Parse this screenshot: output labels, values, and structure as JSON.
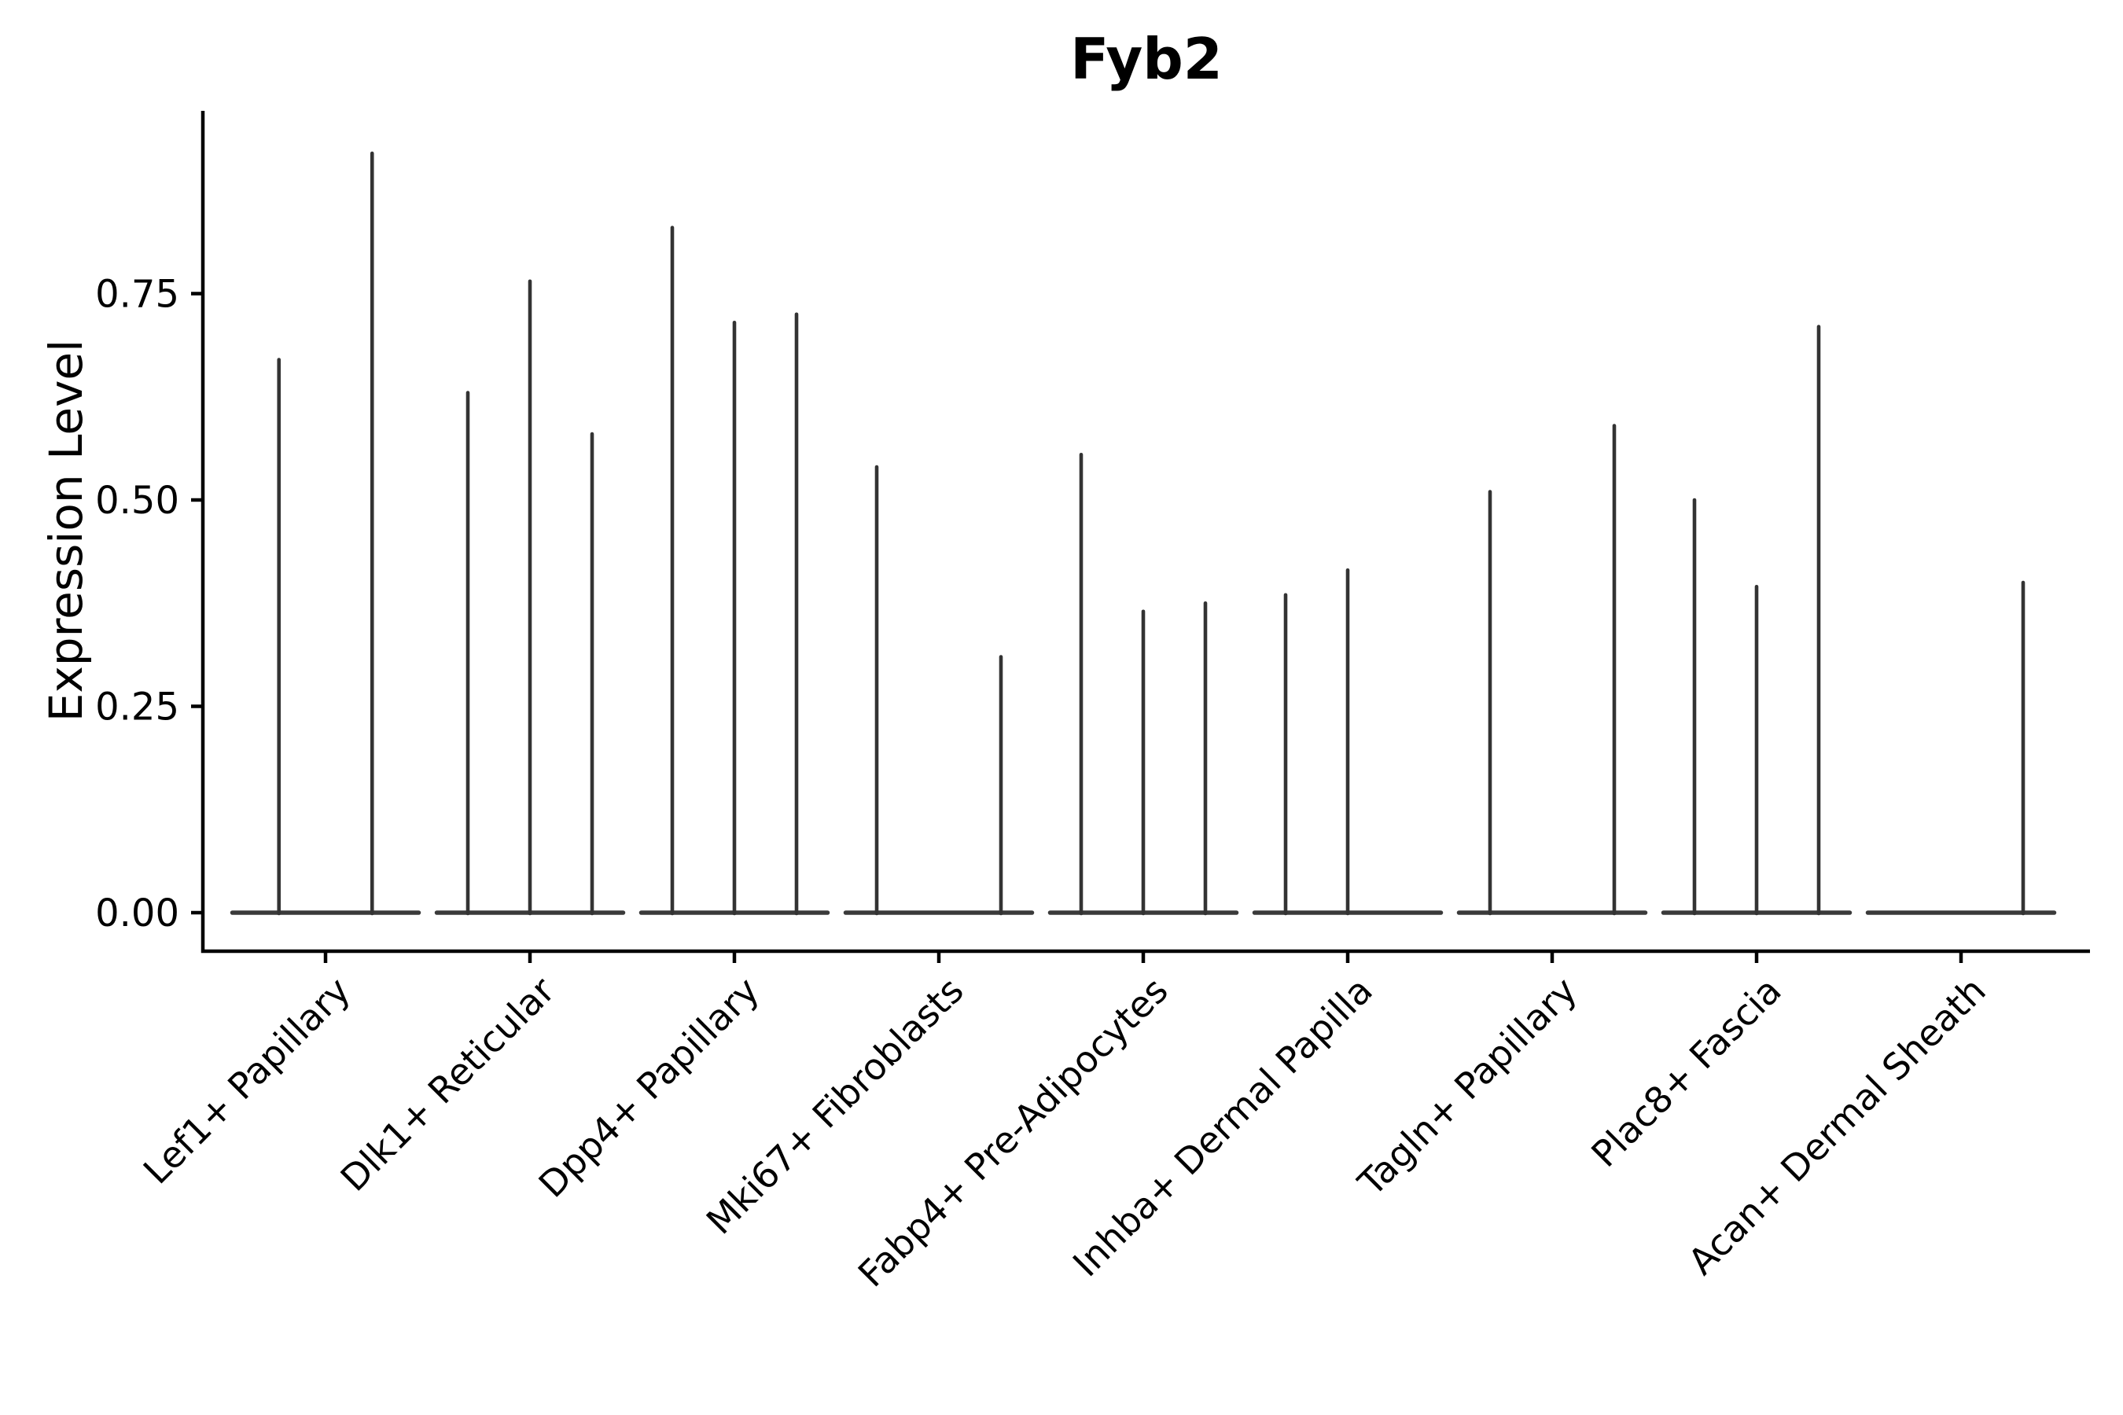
{
  "chart_data": {
    "type": "violin",
    "title": "Fyb2",
    "xlabel": "",
    "ylabel": "Expression Level",
    "ylim": [
      0,
      0.97
    ],
    "yticks": [
      0,
      0.25,
      0.5,
      0.75
    ],
    "ytick_labels": [
      "0.00",
      "0.25",
      "0.50",
      "0.75"
    ],
    "grid": false,
    "legend": false,
    "categories": [
      "Lef1+ Papillary",
      "Dlk1+ Reticular",
      "Dpp4+ Papillary",
      "Mki67+ Fibroblasts",
      "Fabp4+ Pre-Adipocytes",
      "Inhba+ Dermal Papilla",
      "Tagln+ Papillary",
      "Plac8+ Fascia",
      "Acan+ Dermal Sheath"
    ],
    "violins": [
      {
        "category": "Lef1+ Papillary",
        "peak_heights": [
          0.67,
          0.92
        ]
      },
      {
        "category": "Dlk1+ Reticular",
        "peak_heights": [
          0.63,
          0.765,
          0.58
        ]
      },
      {
        "category": "Dpp4+ Papillary",
        "peak_heights": [
          0.83,
          0.715,
          0.725
        ]
      },
      {
        "category": "Mki67+ Fibroblasts",
        "peak_heights": [
          0.54,
          0,
          0.31
        ]
      },
      {
        "category": "Fabp4+ Pre-Adipocytes",
        "peak_heights": [
          0.555,
          0.365,
          0.375
        ]
      },
      {
        "category": "Inhba+ Dermal Papilla",
        "peak_heights": [
          0.385,
          0.415,
          0
        ]
      },
      {
        "category": "Tagln+ Papillary",
        "peak_heights": [
          0.51,
          0,
          0.59
        ]
      },
      {
        "category": "Plac8+ Fascia",
        "peak_heights": [
          0.5,
          0.395,
          0.71
        ]
      },
      {
        "category": "Acan+ Dermal Sheath",
        "peak_heights": [
          0,
          0,
          0.4
        ]
      }
    ],
    "colors": {
      "spike": "#333333",
      "baseline": "#3a3a3a",
      "axis": "#000000",
      "text": "#000000",
      "background": "#ffffff"
    }
  }
}
